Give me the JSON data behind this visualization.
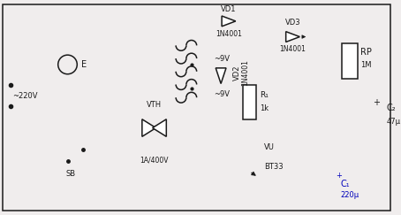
{
  "fig_width": 4.54,
  "fig_height": 2.43,
  "dpi": 100,
  "bg": "#f0eded",
  "lc": "#1a1a1a",
  "red": "#cc2200",
  "blue": "#0000bb",
  "lw": 1.1,
  "labels": {
    "v220": "~220V",
    "E_lamp": "E",
    "SB": "SB",
    "VTH": "VTH",
    "VTH_spec": "1A/400V",
    "VD1": "VD1",
    "VD1_spec": "1N4001",
    "v9top": "~9V",
    "v9bot": "~9V",
    "VD2": "VD2",
    "VD2_spec": "1N4001",
    "VD3": "VD3",
    "VD3_spec": "1N4001",
    "R1": "R₁",
    "R1_spec": "1k",
    "VU": "VU",
    "VU_spec": "BT33",
    "RP": "RP",
    "RP_spec": "1M",
    "C2": "C₂",
    "C2_spec": "47μ",
    "C1": "C₁",
    "C1_spec": "220μ"
  }
}
